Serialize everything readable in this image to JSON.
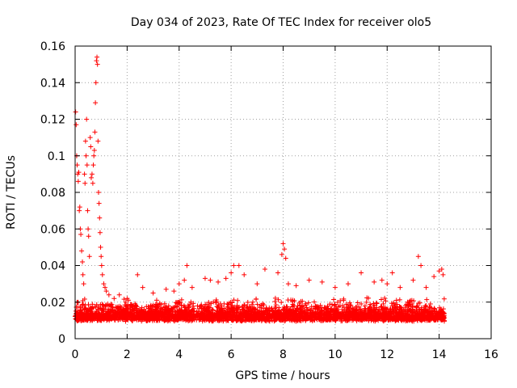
{
  "chart_data": {
    "type": "scatter",
    "title": "Day 034 of 2023, Rate Of TEC Index for receiver olo5",
    "xlabel": "GPS time / hours",
    "ylabel": "ROTI / TECUs",
    "xlim": [
      0,
      16
    ],
    "ylim": [
      0,
      0.16
    ],
    "xticks": [
      0,
      2,
      4,
      6,
      8,
      10,
      12,
      14,
      16
    ],
    "xtick_labels": [
      "0",
      "2",
      "4",
      "6",
      "8",
      "10",
      "12",
      "14",
      "16"
    ],
    "yticks": [
      0,
      0.02,
      0.04,
      0.06,
      0.08,
      0.1,
      0.12,
      0.14,
      0.16
    ],
    "ytick_labels": [
      "0",
      "0.02",
      "0.04",
      "0.06",
      "0.08",
      "0.1",
      "0.12",
      "0.14",
      "0.16"
    ],
    "grid": true,
    "marker": "plus",
    "series_color": "#ff0000",
    "dense_band": {
      "x_range": [
        0,
        14.2
      ],
      "y_range": [
        0.006,
        0.024
      ],
      "count": 3500
    },
    "series": [
      {
        "name": "ROTI",
        "points": [
          [
            0.02,
            0.124
          ],
          [
            0.04,
            0.117
          ],
          [
            0.06,
            0.1
          ],
          [
            0.08,
            0.095
          ],
          [
            0.1,
            0.09
          ],
          [
            0.12,
            0.086
          ],
          [
            0.14,
            0.091
          ],
          [
            0.16,
            0.07
          ],
          [
            0.18,
            0.072
          ],
          [
            0.2,
            0.06
          ],
          [
            0.22,
            0.057
          ],
          [
            0.25,
            0.048
          ],
          [
            0.28,
            0.042
          ],
          [
            0.3,
            0.035
          ],
          [
            0.33,
            0.03
          ],
          [
            0.36,
            0.09
          ],
          [
            0.38,
            0.085
          ],
          [
            0.4,
            0.108
          ],
          [
            0.42,
            0.1
          ],
          [
            0.44,
            0.12
          ],
          [
            0.46,
            0.095
          ],
          [
            0.48,
            0.07
          ],
          [
            0.5,
            0.06
          ],
          [
            0.52,
            0.056
          ],
          [
            0.55,
            0.045
          ],
          [
            0.58,
            0.11
          ],
          [
            0.6,
            0.105
          ],
          [
            0.62,
            0.088
          ],
          [
            0.65,
            0.09
          ],
          [
            0.68,
            0.085
          ],
          [
            0.7,
            0.095
          ],
          [
            0.72,
            0.1
          ],
          [
            0.74,
            0.103
          ],
          [
            0.76,
            0.113
          ],
          [
            0.78,
            0.129
          ],
          [
            0.8,
            0.14
          ],
          [
            0.82,
            0.152
          ],
          [
            0.84,
            0.154
          ],
          [
            0.86,
            0.15
          ],
          [
            0.88,
            0.108
          ],
          [
            0.9,
            0.08
          ],
          [
            0.92,
            0.074
          ],
          [
            0.94,
            0.066
          ],
          [
            0.96,
            0.058
          ],
          [
            0.98,
            0.05
          ],
          [
            1.0,
            0.045
          ],
          [
            1.02,
            0.04
          ],
          [
            1.05,
            0.035
          ],
          [
            1.1,
            0.03
          ],
          [
            1.15,
            0.028
          ],
          [
            1.2,
            0.026
          ],
          [
            1.3,
            0.024
          ],
          [
            1.5,
            0.022
          ],
          [
            1.7,
            0.024
          ],
          [
            2.0,
            0.022
          ],
          [
            2.4,
            0.035
          ],
          [
            2.6,
            0.028
          ],
          [
            3.0,
            0.025
          ],
          [
            3.5,
            0.027
          ],
          [
            3.8,
            0.026
          ],
          [
            4.0,
            0.03
          ],
          [
            4.2,
            0.032
          ],
          [
            4.3,
            0.04
          ],
          [
            4.5,
            0.028
          ],
          [
            5.0,
            0.033
          ],
          [
            5.2,
            0.032
          ],
          [
            5.5,
            0.031
          ],
          [
            5.8,
            0.033
          ],
          [
            6.0,
            0.036
          ],
          [
            6.1,
            0.04
          ],
          [
            6.3,
            0.04
          ],
          [
            6.5,
            0.035
          ],
          [
            7.0,
            0.03
          ],
          [
            7.3,
            0.038
          ],
          [
            7.8,
            0.036
          ],
          [
            7.95,
            0.046
          ],
          [
            8.0,
            0.052
          ],
          [
            8.05,
            0.049
          ],
          [
            8.1,
            0.044
          ],
          [
            8.2,
            0.03
          ],
          [
            8.5,
            0.029
          ],
          [
            9.0,
            0.032
          ],
          [
            9.5,
            0.031
          ],
          [
            10.0,
            0.028
          ],
          [
            10.5,
            0.03
          ],
          [
            11.0,
            0.036
          ],
          [
            11.5,
            0.031
          ],
          [
            11.8,
            0.032
          ],
          [
            12.0,
            0.03
          ],
          [
            12.2,
            0.036
          ],
          [
            12.5,
            0.028
          ],
          [
            13.0,
            0.032
          ],
          [
            13.2,
            0.045
          ],
          [
            13.3,
            0.04
          ],
          [
            13.5,
            0.028
          ],
          [
            13.8,
            0.034
          ],
          [
            14.0,
            0.037
          ],
          [
            14.1,
            0.038
          ],
          [
            14.15,
            0.035
          ]
        ]
      }
    ]
  }
}
